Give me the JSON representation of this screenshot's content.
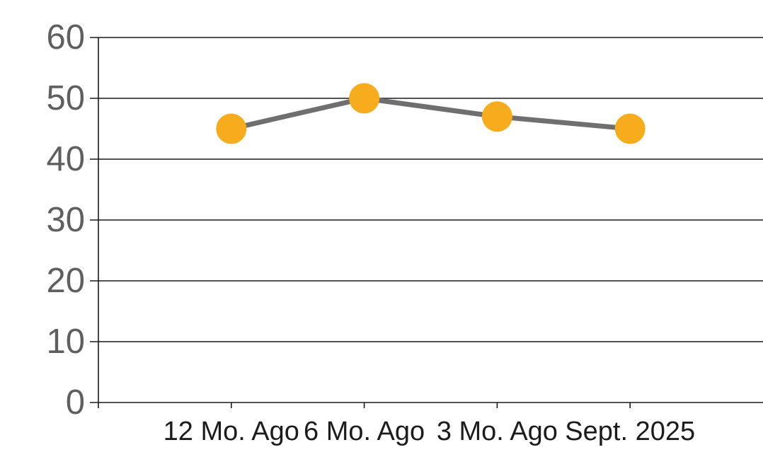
{
  "chart_data": {
    "type": "line",
    "title": "",
    "xlabel": "",
    "ylabel": "",
    "categories": [
      "12 Mo. Ago",
      "6 Mo. Ago",
      "3 Mo. Ago",
      "Sept. 2025"
    ],
    "values": [
      45,
      50,
      47,
      45
    ],
    "ylim": [
      0,
      60
    ],
    "yticks": [
      0,
      10,
      20,
      30,
      40,
      50,
      60
    ],
    "grid": "horizontal",
    "legend_position": "none",
    "colors": {
      "marker": "#F7AC1E",
      "line": "#6F6F6F",
      "gridline": "#1A1A1A",
      "axis": "#1A1A1A",
      "y_tick_label": "#5F5F5F",
      "x_tick_label": "#1C1C1C",
      "background": "#FFFFFF"
    }
  }
}
